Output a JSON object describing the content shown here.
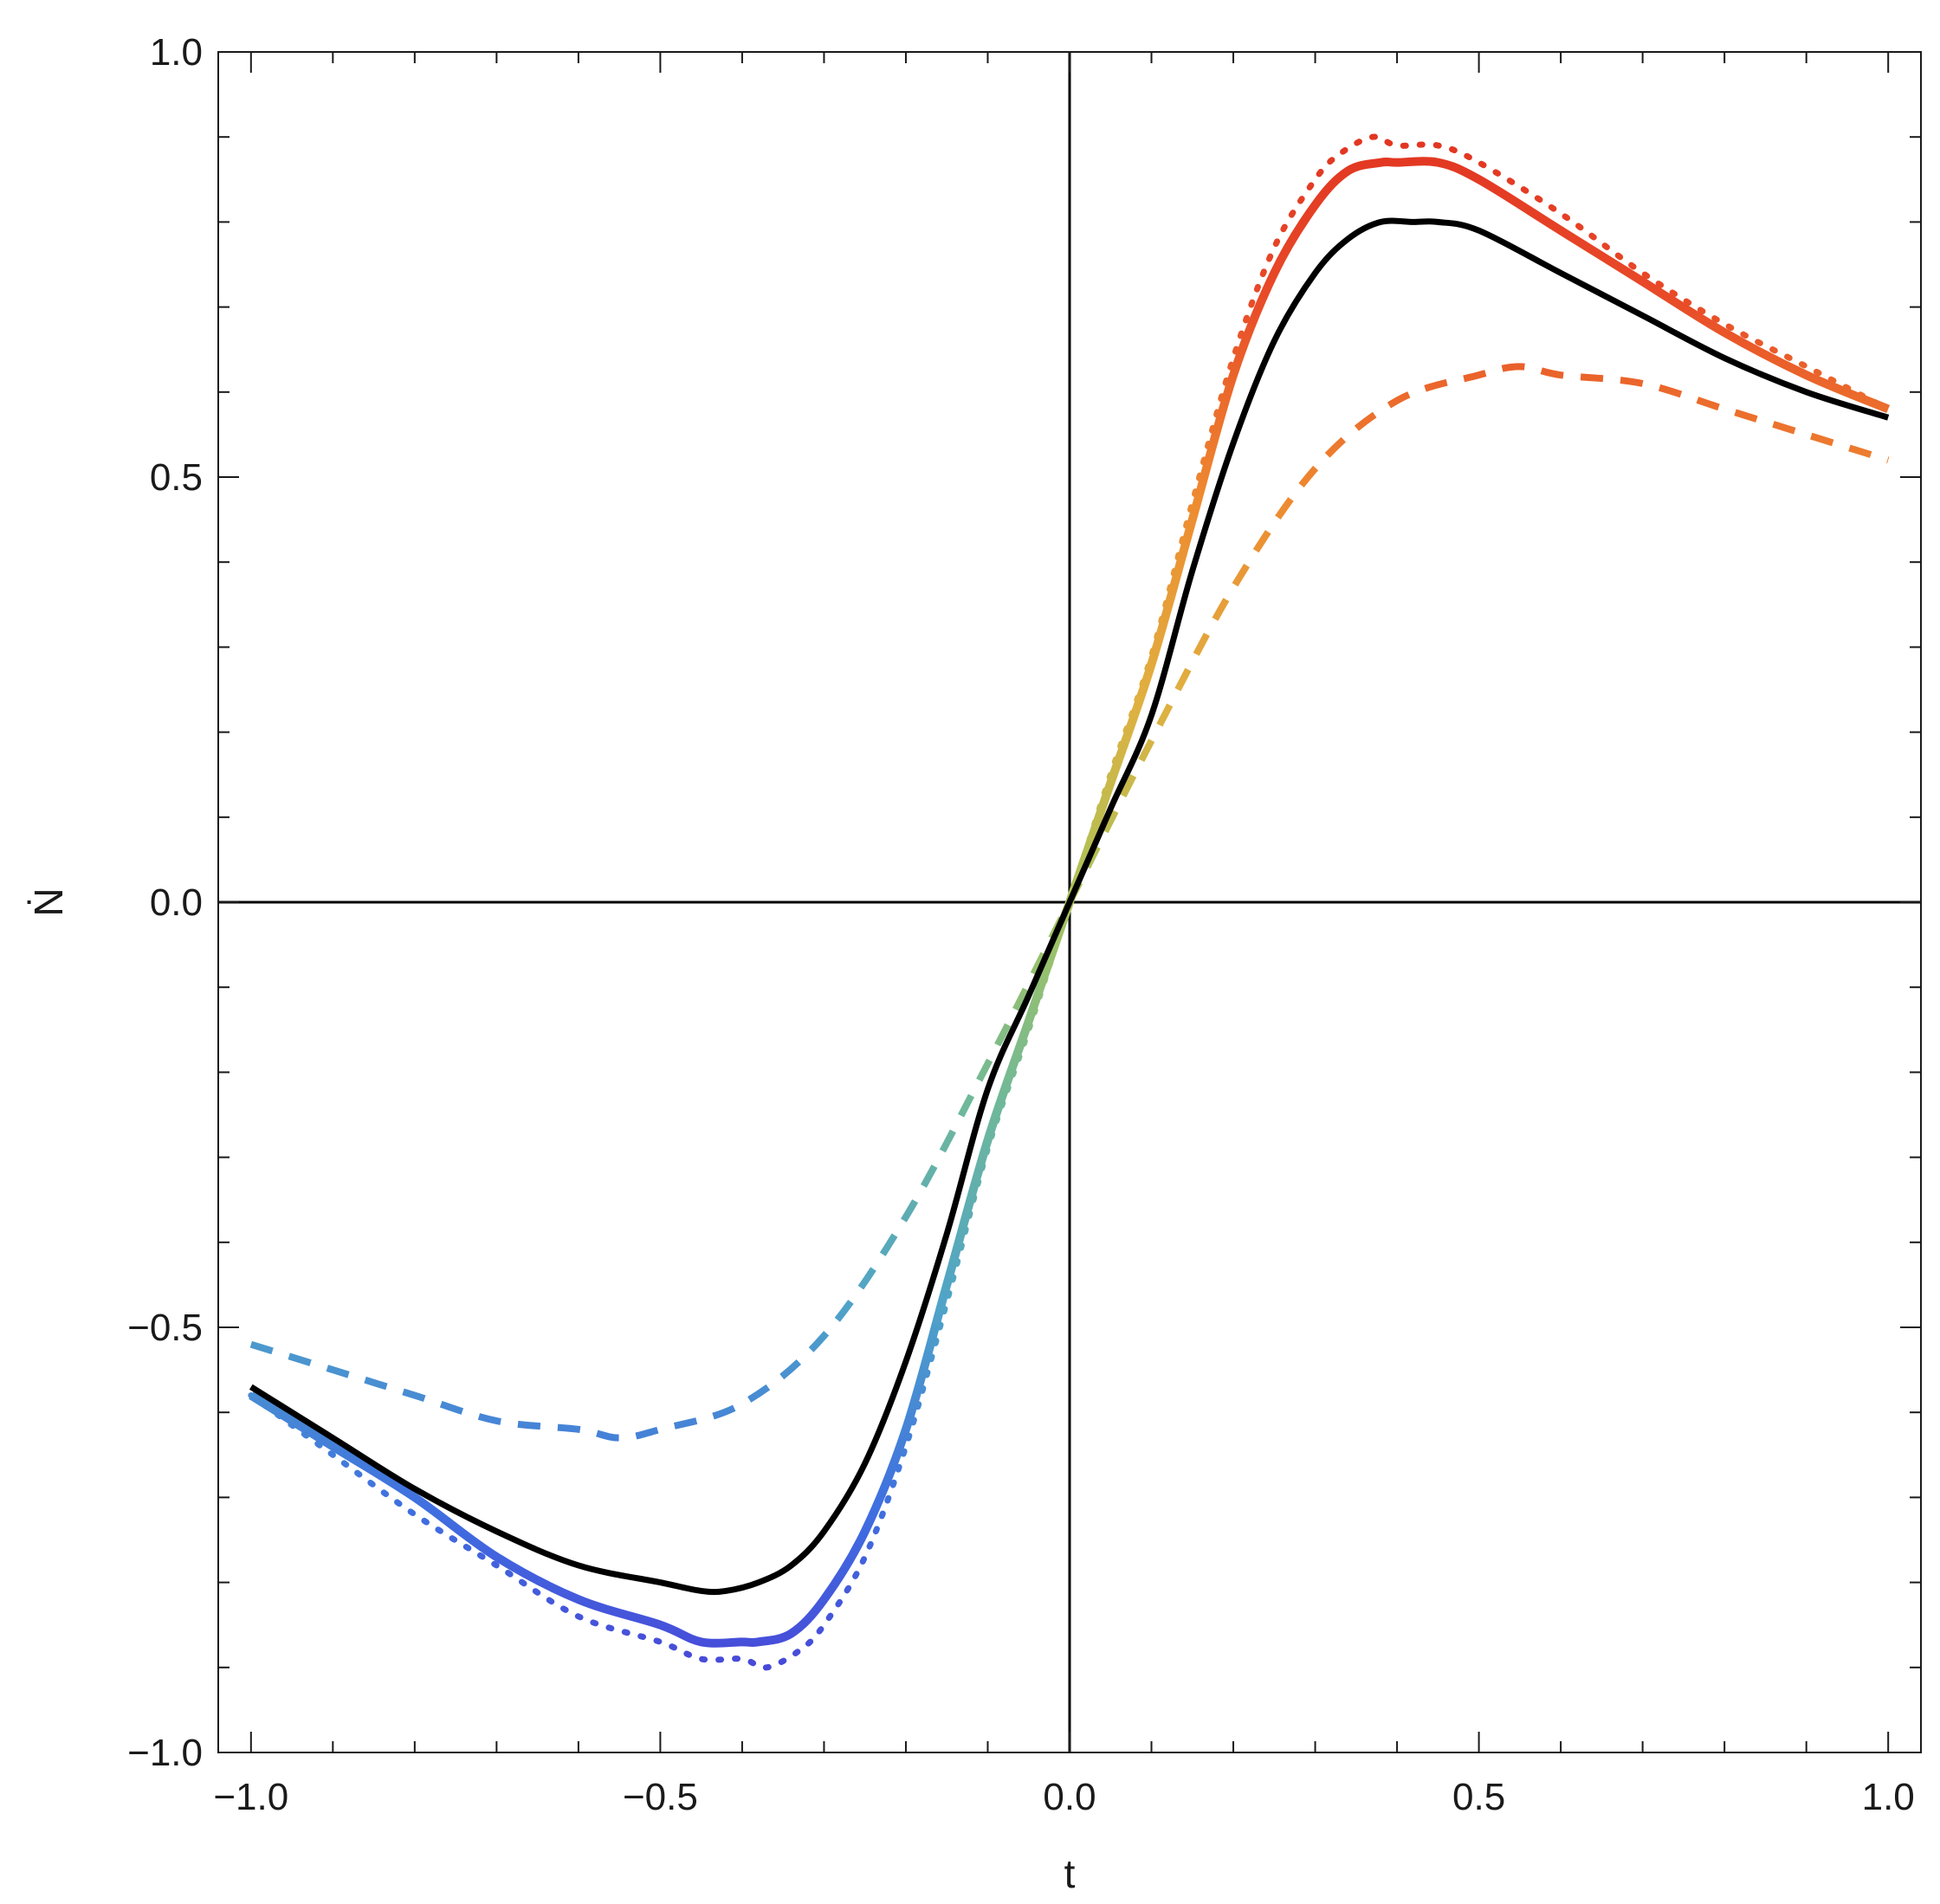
{
  "chart_data": {
    "type": "line",
    "title": "",
    "xlabel": "t",
    "ylabel": "Ṅ",
    "xlim": [
      -1.04,
      1.04
    ],
    "ylim": [
      -1.0,
      1.0
    ],
    "grid": false,
    "frame": true,
    "zero_axes": true,
    "x_ticks": [
      -1.0,
      -0.5,
      0.0,
      0.5,
      1.0
    ],
    "x_tick_labels": [
      "−1.0",
      "−0.5",
      "0.0",
      "0.5",
      "1.0"
    ],
    "y_ticks": [
      -1.0,
      -0.5,
      0.0,
      0.5,
      1.0
    ],
    "y_tick_labels": [
      "−1.0",
      "−0.5",
      "0.0",
      "0.5",
      "1.0"
    ],
    "x_minor_step": 0.1,
    "y_minor_step": 0.1,
    "color_scale": [
      "#4a3fd6",
      "#3f6fe0",
      "#4fa3c8",
      "#6fb89a",
      "#a8c45a",
      "#e0b040",
      "#ee8a30",
      "#e84a28",
      "#e03020"
    ],
    "series": [
      {
        "style": "solid-black",
        "color": "#000000",
        "x": [
          -1.0,
          -0.9,
          -0.8,
          -0.7,
          -0.6,
          -0.5,
          -0.45,
          -0.42,
          -0.38,
          -0.34,
          -0.3,
          -0.25,
          -0.2,
          -0.15,
          -0.1,
          -0.05,
          0.0,
          0.05,
          0.1,
          0.15,
          0.2,
          0.25,
          0.3,
          0.34,
          0.38,
          0.42,
          0.45,
          0.5,
          0.6,
          0.7,
          0.8,
          0.9,
          1.0
        ],
        "values": [
          -0.57,
          -0.63,
          -0.69,
          -0.74,
          -0.78,
          -0.8,
          -0.81,
          -0.81,
          -0.8,
          -0.78,
          -0.74,
          -0.66,
          -0.54,
          -0.39,
          -0.22,
          -0.11,
          0.0,
          0.11,
          0.22,
          0.39,
          0.54,
          0.66,
          0.74,
          0.78,
          0.8,
          0.8,
          0.8,
          0.79,
          0.74,
          0.69,
          0.64,
          0.6,
          0.57
        ]
      },
      {
        "style": "solid-gradient",
        "x": [
          -1.0,
          -0.9,
          -0.8,
          -0.7,
          -0.6,
          -0.5,
          -0.45,
          -0.4,
          -0.38,
          -0.34,
          -0.3,
          -0.25,
          -0.2,
          -0.15,
          -0.1,
          -0.05,
          0.0,
          0.05,
          0.1,
          0.15,
          0.2,
          0.25,
          0.3,
          0.34,
          0.38,
          0.4,
          0.45,
          0.5,
          0.6,
          0.7,
          0.8,
          0.9,
          1.0
        ],
        "values": [
          -0.58,
          -0.64,
          -0.7,
          -0.77,
          -0.82,
          -0.85,
          -0.87,
          -0.87,
          -0.87,
          -0.86,
          -0.82,
          -0.74,
          -0.62,
          -0.45,
          -0.28,
          -0.14,
          0.0,
          0.14,
          0.28,
          0.45,
          0.62,
          0.74,
          0.82,
          0.86,
          0.87,
          0.87,
          0.87,
          0.85,
          0.79,
          0.73,
          0.67,
          0.62,
          0.58
        ]
      },
      {
        "style": "dotted-gradient",
        "x": [
          -1.0,
          -0.9,
          -0.8,
          -0.7,
          -0.6,
          -0.5,
          -0.45,
          -0.4,
          -0.37,
          -0.33,
          -0.3,
          -0.25,
          -0.2,
          -0.15,
          -0.1,
          -0.05,
          0.0,
          0.05,
          0.1,
          0.15,
          0.2,
          0.25,
          0.3,
          0.33,
          0.37,
          0.4,
          0.45,
          0.5,
          0.6,
          0.7,
          0.8,
          0.9,
          1.0
        ],
        "values": [
          -0.58,
          -0.65,
          -0.72,
          -0.78,
          -0.84,
          -0.87,
          -0.89,
          -0.89,
          -0.9,
          -0.88,
          -0.85,
          -0.77,
          -0.64,
          -0.47,
          -0.29,
          -0.15,
          0.0,
          0.15,
          0.29,
          0.47,
          0.64,
          0.77,
          0.85,
          0.88,
          0.9,
          0.89,
          0.89,
          0.87,
          0.81,
          0.74,
          0.68,
          0.63,
          0.58
        ]
      },
      {
        "style": "dashed-gradient",
        "x": [
          -1.0,
          -0.9,
          -0.8,
          -0.7,
          -0.6,
          -0.55,
          -0.5,
          -0.4,
          -0.3,
          -0.2,
          -0.1,
          0.0,
          0.1,
          0.2,
          0.3,
          0.4,
          0.5,
          0.55,
          0.6,
          0.7,
          0.8,
          0.9,
          1.0
        ],
        "values": [
          -0.52,
          -0.55,
          -0.58,
          -0.61,
          -0.62,
          -0.63,
          -0.62,
          -0.59,
          -0.51,
          -0.37,
          -0.19,
          0.0,
          0.19,
          0.37,
          0.51,
          0.59,
          0.62,
          0.63,
          0.62,
          0.61,
          0.58,
          0.55,
          0.52
        ]
      }
    ]
  }
}
